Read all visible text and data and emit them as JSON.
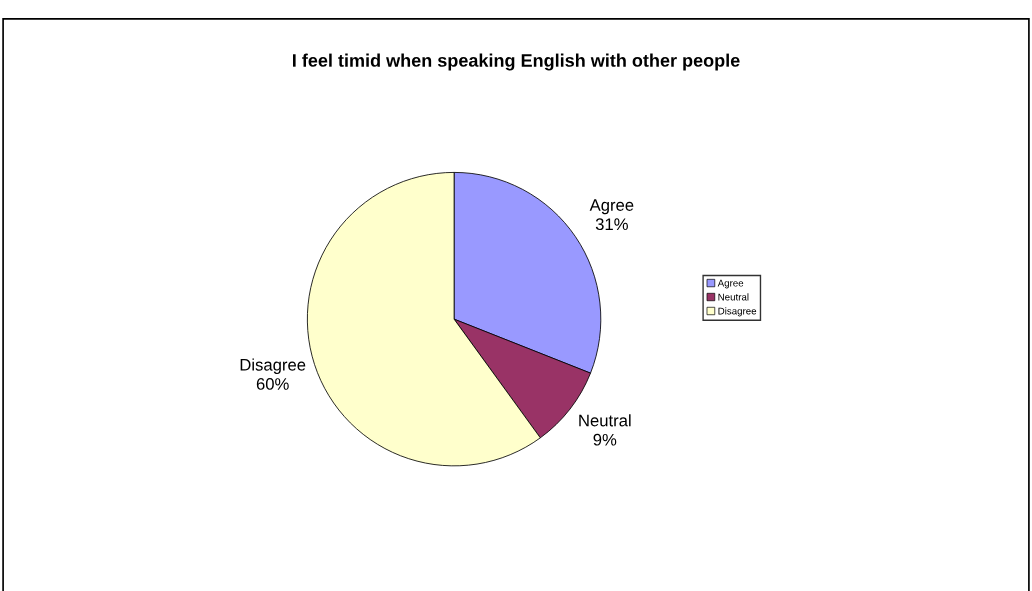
{
  "chart_data": {
    "type": "pie",
    "title": "I feel timid when speaking English with other people",
    "categories": [
      "Agree",
      "Neutral",
      "Disagree"
    ],
    "values": [
      31,
      9,
      60
    ],
    "colors": [
      "#9999ff",
      "#993366",
      "#ffffcc"
    ],
    "value_labels": [
      "31%",
      "9%",
      "60%"
    ],
    "legend": "right"
  }
}
